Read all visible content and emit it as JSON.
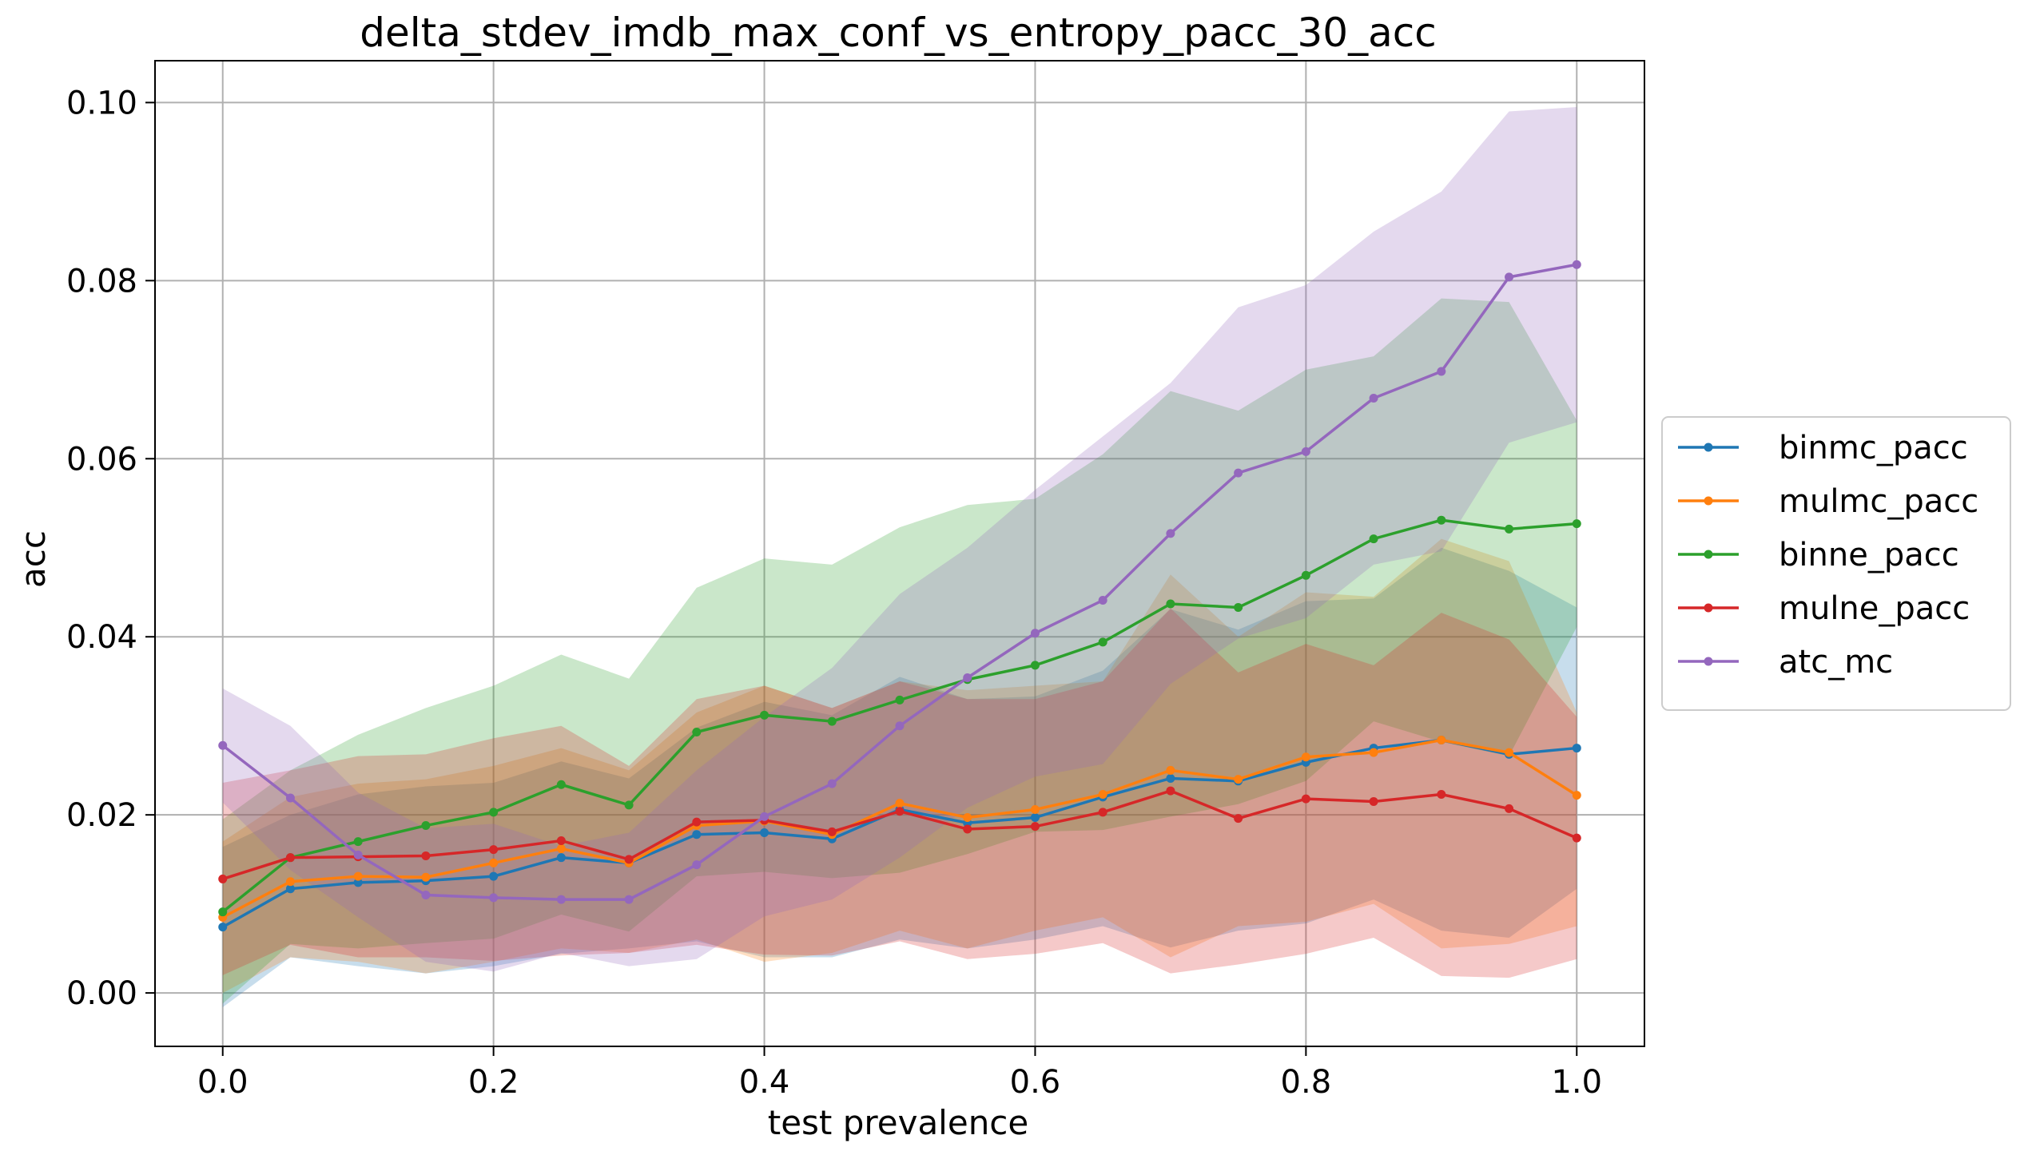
{
  "chart_data": {
    "type": "line",
    "title": "delta_stdev_imdb_max_conf_vs_entropy_pacc_30_acc",
    "xlabel": "test prevalence",
    "ylabel": "acc",
    "xlim": [
      -0.05,
      1.05
    ],
    "ylim": [
      -0.006,
      0.1047
    ],
    "grid": true,
    "legend_position": "right",
    "xticks": [
      0.0,
      0.2,
      0.4,
      0.6,
      0.8,
      1.0
    ],
    "xtick_labels": [
      "0.0",
      "0.2",
      "0.4",
      "0.6",
      "0.8",
      "1.0"
    ],
    "yticks": [
      0.0,
      0.02,
      0.04,
      0.06,
      0.08,
      0.1
    ],
    "ytick_labels": [
      "0.00",
      "0.02",
      "0.04",
      "0.06",
      "0.08",
      "0.10"
    ],
    "x": [
      0.0,
      0.05,
      0.1,
      0.15,
      0.2,
      0.25,
      0.3,
      0.35,
      0.4,
      0.45,
      0.5,
      0.55,
      0.6,
      0.65,
      0.7,
      0.75,
      0.8,
      0.85,
      0.9,
      0.95,
      1.0
    ],
    "series": [
      {
        "name": "binmc_pacc",
        "color": "#1f77b4",
        "values": [
          0.0074,
          0.0117,
          0.0124,
          0.0126,
          0.0131,
          0.0152,
          0.0146,
          0.0178,
          0.018,
          0.0173,
          0.0206,
          0.0191,
          0.0197,
          0.022,
          0.0241,
          0.0238,
          0.0259,
          0.0275,
          0.0284,
          0.0268,
          0.0275
        ],
        "upper": [
          0.0164,
          0.02,
          0.0223,
          0.0232,
          0.0236,
          0.026,
          0.0241,
          0.0298,
          0.0327,
          0.0312,
          0.0355,
          0.033,
          0.0333,
          0.0362,
          0.0431,
          0.0408,
          0.044,
          0.0443,
          0.05,
          0.0474,
          0.0433
        ],
        "lower": [
          -0.0016,
          0.004,
          0.003,
          0.0022,
          0.003,
          0.0044,
          0.005,
          0.0058,
          0.004,
          0.004,
          0.006,
          0.005,
          0.006,
          0.0075,
          0.0051,
          0.007,
          0.0078,
          0.0105,
          0.007,
          0.0062,
          0.0117
        ]
      },
      {
        "name": "mulmc_pacc",
        "color": "#ff7f0e",
        "values": [
          0.0085,
          0.0125,
          0.0131,
          0.013,
          0.0146,
          0.0162,
          0.0146,
          0.0188,
          0.0193,
          0.0178,
          0.0213,
          0.0197,
          0.0206,
          0.0223,
          0.025,
          0.024,
          0.0265,
          0.027,
          0.0284,
          0.027,
          0.0222
        ],
        "upper": [
          0.017,
          0.022,
          0.0235,
          0.024,
          0.0255,
          0.0275,
          0.025,
          0.0315,
          0.0345,
          0.032,
          0.035,
          0.034,
          0.0345,
          0.035,
          0.047,
          0.04,
          0.045,
          0.0445,
          0.051,
          0.0485,
          0.0315
        ],
        "lower": [
          0.0,
          0.004,
          0.0035,
          0.0022,
          0.0035,
          0.005,
          0.0045,
          0.006,
          0.0035,
          0.0045,
          0.007,
          0.005,
          0.007,
          0.0085,
          0.004,
          0.0075,
          0.008,
          0.01,
          0.005,
          0.0055,
          0.0075
        ]
      },
      {
        "name": "binne_pacc",
        "color": "#2ca02c",
        "values": [
          0.0091,
          0.0152,
          0.017,
          0.0188,
          0.0203,
          0.0234,
          0.0211,
          0.0293,
          0.0312,
          0.0305,
          0.0329,
          0.0352,
          0.0368,
          0.0394,
          0.0437,
          0.0433,
          0.0469,
          0.051,
          0.0531,
          0.0521,
          0.0527
        ],
        "upper": [
          0.0195,
          0.025,
          0.029,
          0.032,
          0.0345,
          0.038,
          0.0353,
          0.0455,
          0.0488,
          0.0481,
          0.0523,
          0.0548,
          0.0555,
          0.0605,
          0.0676,
          0.0654,
          0.07,
          0.0715,
          0.078,
          0.0776,
          0.0643
        ],
        "lower": [
          -0.0012,
          0.0055,
          0.005,
          0.0056,
          0.0061,
          0.0088,
          0.0069,
          0.0131,
          0.0136,
          0.0129,
          0.0135,
          0.0156,
          0.0181,
          0.0183,
          0.0198,
          0.0212,
          0.0238,
          0.0305,
          0.0282,
          0.0266,
          0.0411
        ]
      },
      {
        "name": "mulne_pacc",
        "color": "#d62728",
        "values": [
          0.0128,
          0.0152,
          0.0153,
          0.0154,
          0.0161,
          0.0171,
          0.015,
          0.0192,
          0.0194,
          0.0181,
          0.0204,
          0.0184,
          0.0187,
          0.0203,
          0.0227,
          0.0196,
          0.0218,
          0.0215,
          0.0223,
          0.0207,
          0.0174
        ],
        "upper": [
          0.0236,
          0.025,
          0.0266,
          0.0268,
          0.0286,
          0.03,
          0.0255,
          0.033,
          0.0345,
          0.032,
          0.035,
          0.033,
          0.033,
          0.035,
          0.0432,
          0.036,
          0.0392,
          0.0368,
          0.0427,
          0.0397,
          0.031
        ],
        "lower": [
          0.002,
          0.0054,
          0.004,
          0.004,
          0.0036,
          0.0042,
          0.0045,
          0.0054,
          0.0043,
          0.0042,
          0.0058,
          0.0038,
          0.0044,
          0.0056,
          0.0022,
          0.0032,
          0.0044,
          0.0062,
          0.0019,
          0.0017,
          0.0038
        ]
      },
      {
        "name": "atc_mc",
        "color": "#9467bd",
        "values": [
          0.0278,
          0.0219,
          0.0155,
          0.011,
          0.0107,
          0.0105,
          0.0105,
          0.0144,
          0.0198,
          0.0235,
          0.03,
          0.0354,
          0.0404,
          0.0441,
          0.0516,
          0.0584,
          0.0608,
          0.0668,
          0.0698,
          0.0804,
          0.0818
        ],
        "upper": [
          0.0342,
          0.03,
          0.0225,
          0.0185,
          0.019,
          0.0165,
          0.018,
          0.025,
          0.031,
          0.0365,
          0.0448,
          0.05,
          0.0565,
          0.0625,
          0.0685,
          0.077,
          0.0795,
          0.0855,
          0.09,
          0.099,
          0.0995
        ],
        "lower": [
          0.0214,
          0.0138,
          0.0085,
          0.0035,
          0.0024,
          0.0045,
          0.003,
          0.0038,
          0.0086,
          0.0105,
          0.0152,
          0.0208,
          0.0243,
          0.0257,
          0.0347,
          0.0398,
          0.0421,
          0.0481,
          0.0496,
          0.0618,
          0.0641
        ]
      }
    ]
  }
}
